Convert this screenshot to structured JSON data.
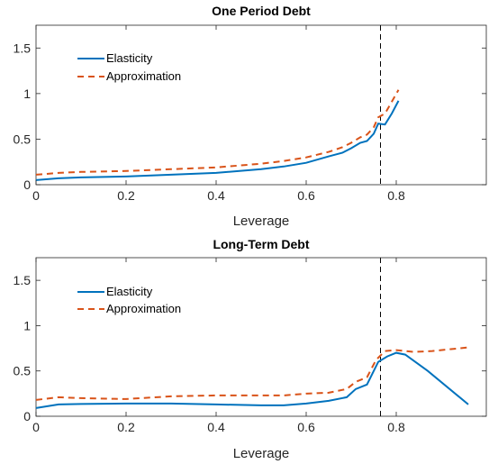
{
  "chart_data": [
    {
      "type": "line",
      "title": "One Period Debt",
      "xlabel": "Leverage",
      "ylabel": "",
      "xlim": [
        0,
        1
      ],
      "ylim": [
        0,
        1.75
      ],
      "xticks": [
        0,
        0.2,
        0.4,
        0.6,
        0.8
      ],
      "yticks": [
        0,
        0.5,
        1,
        1.5
      ],
      "xtick_labels": [
        "0",
        "0.2",
        "0.4",
        "0.6",
        "0.8"
      ],
      "ytick_labels": [
        "0",
        "0.5",
        "1",
        "1.5"
      ],
      "grid": false,
      "legend_position": "top-left",
      "vline_x": 0.765,
      "series": [
        {
          "name": "Elasticity",
          "color": "#0072BD",
          "style": "solid",
          "x": [
            0,
            0.05,
            0.1,
            0.2,
            0.3,
            0.4,
            0.5,
            0.55,
            0.6,
            0.65,
            0.68,
            0.7,
            0.72,
            0.735,
            0.75,
            0.76,
            0.775,
            0.79,
            0.805
          ],
          "y": [
            0.05,
            0.07,
            0.08,
            0.09,
            0.11,
            0.13,
            0.17,
            0.2,
            0.24,
            0.31,
            0.35,
            0.4,
            0.46,
            0.48,
            0.56,
            0.67,
            0.66,
            0.78,
            0.92
          ]
        },
        {
          "name": "Approximation",
          "color": "#D95319",
          "style": "dashed",
          "x": [
            0,
            0.05,
            0.1,
            0.2,
            0.3,
            0.4,
            0.5,
            0.55,
            0.6,
            0.65,
            0.68,
            0.7,
            0.72,
            0.735,
            0.75,
            0.76,
            0.775,
            0.79,
            0.805
          ],
          "y": [
            0.11,
            0.13,
            0.14,
            0.15,
            0.17,
            0.19,
            0.23,
            0.26,
            0.3,
            0.36,
            0.41,
            0.46,
            0.52,
            0.55,
            0.63,
            0.74,
            0.78,
            0.91,
            1.04
          ]
        }
      ]
    },
    {
      "type": "line",
      "title": "Long-Term Debt",
      "xlabel": "Leverage",
      "ylabel": "",
      "xlim": [
        0,
        1
      ],
      "ylim": [
        0,
        1.75
      ],
      "xticks": [
        0,
        0.2,
        0.4,
        0.6,
        0.8
      ],
      "yticks": [
        0,
        0.5,
        1,
        1.5
      ],
      "xtick_labels": [
        "0",
        "0.2",
        "0.4",
        "0.6",
        "0.8"
      ],
      "ytick_labels": [
        "0",
        "0.5",
        "1",
        "1.5"
      ],
      "grid": false,
      "legend_position": "top-left",
      "vline_x": 0.765,
      "series": [
        {
          "name": "Elasticity",
          "color": "#0072BD",
          "style": "solid",
          "x": [
            0,
            0.05,
            0.1,
            0.2,
            0.3,
            0.4,
            0.5,
            0.55,
            0.6,
            0.65,
            0.69,
            0.71,
            0.735,
            0.76,
            0.78,
            0.8,
            0.82,
            0.87,
            0.96
          ],
          "y": [
            0.09,
            0.13,
            0.135,
            0.14,
            0.14,
            0.13,
            0.12,
            0.12,
            0.14,
            0.17,
            0.21,
            0.3,
            0.35,
            0.6,
            0.66,
            0.7,
            0.68,
            0.5,
            0.13
          ]
        },
        {
          "name": "Approximation",
          "color": "#D95319",
          "style": "dashed",
          "x": [
            0,
            0.05,
            0.1,
            0.2,
            0.3,
            0.4,
            0.5,
            0.55,
            0.6,
            0.65,
            0.69,
            0.71,
            0.735,
            0.755,
            0.775,
            0.8,
            0.84,
            0.88,
            0.96
          ],
          "y": [
            0.18,
            0.21,
            0.2,
            0.19,
            0.22,
            0.23,
            0.23,
            0.23,
            0.25,
            0.26,
            0.3,
            0.38,
            0.43,
            0.62,
            0.72,
            0.73,
            0.71,
            0.72,
            0.76
          ]
        }
      ]
    }
  ]
}
